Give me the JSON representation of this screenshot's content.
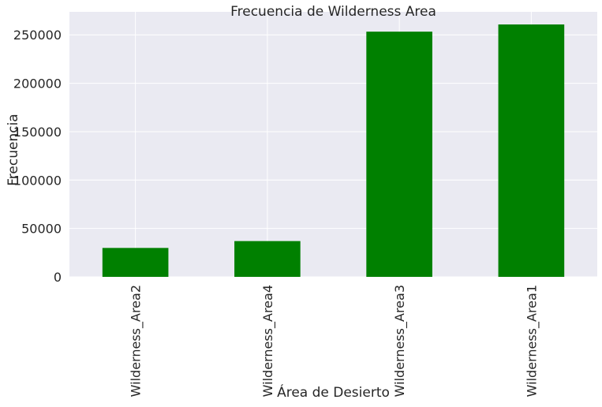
{
  "chart_data": {
    "type": "bar",
    "title": "Frecuencia de Wilderness Area",
    "xlabel": "Área de Desierto",
    "ylabel": "Frecuencia",
    "categories": [
      "Wilderness_Area2",
      "Wilderness_Area4",
      "Wilderness_Area3",
      "Wilderness_Area1"
    ],
    "values": [
      29884,
      36968,
      253364,
      260796
    ],
    "yticks": [
      0,
      50000,
      100000,
      150000,
      200000,
      250000
    ],
    "ylim": [
      0,
      273836
    ],
    "grid": true,
    "legend": "none",
    "colors": {
      "bar": "#008000",
      "plot_background": "#eaeaf2",
      "grid": "#ffffff",
      "text": "#262626"
    }
  }
}
